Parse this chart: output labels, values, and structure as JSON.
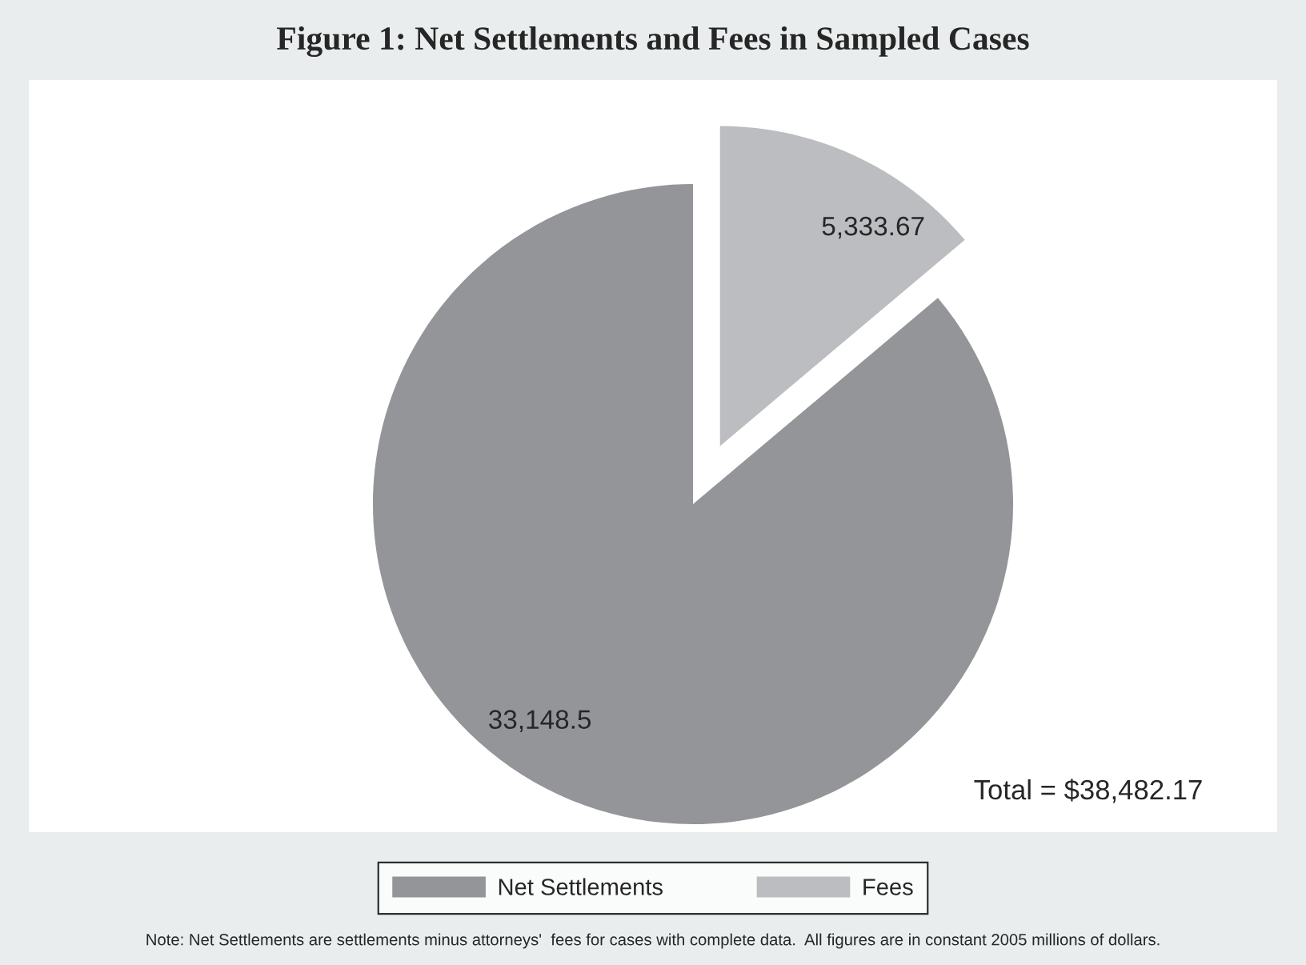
{
  "chart_data": {
    "type": "pie",
    "title": "Figure 1: Net Settlements and Fees in Sampled Cases",
    "categories": [
      "Net Settlements",
      "Fees"
    ],
    "values": [
      33148.5,
      5333.67
    ],
    "value_labels": [
      "33,148.5",
      "5,333.67"
    ],
    "colors": [
      "#949598",
      "#bcbdc0"
    ],
    "legend": "bottom",
    "annotations": [
      "Total = $38,482.17",
      "Note: Net Settlements are settlements minus attorneys'  fees for cases with complete data.  All figures are in constant 2005 millions of dollars."
    ]
  }
}
